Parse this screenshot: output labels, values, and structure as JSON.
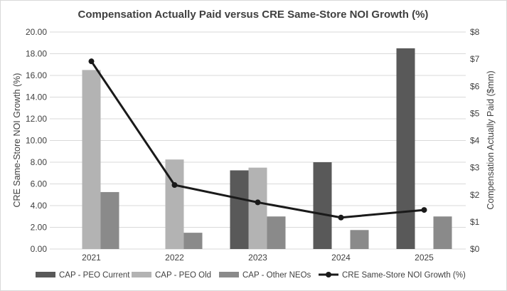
{
  "chart_data": {
    "type": "bar",
    "title": "Compensation Actually Paid versus CRE Same-Store NOI Growth (%)",
    "categories": [
      "2021",
      "2022",
      "2023",
      "2024",
      "2025"
    ],
    "y_left": {
      "label": "CRE Same-Store NOI Growth (%)",
      "range": [
        0,
        20
      ],
      "ticks": [
        "0.00",
        "2.00",
        "4.00",
        "6.00",
        "8.00",
        "10.00",
        "12.00",
        "14.00",
        "16.00",
        "18.00",
        "20.00"
      ]
    },
    "y_right": {
      "label": "Compensation Actually Paid ($mm)",
      "range": [
        0,
        8
      ],
      "ticks": [
        "$0",
        "$1",
        "$2",
        "$3",
        "$4",
        "$5",
        "$6",
        "$7",
        "$8"
      ]
    },
    "series": [
      {
        "name": "CAP - PEO Current",
        "kind": "bar",
        "axis": "right",
        "color": "#595959",
        "values": [
          null,
          null,
          2.9,
          3.2,
          7.4
        ]
      },
      {
        "name": "CAP - PEO Old",
        "kind": "bar",
        "axis": "right",
        "color": "#b3b3b3",
        "values": [
          6.6,
          3.3,
          3.0,
          null,
          null
        ]
      },
      {
        "name": "CAP - Other NEOs",
        "kind": "bar",
        "axis": "right",
        "color": "#8a8a8a",
        "values": [
          2.1,
          0.6,
          1.2,
          0.7,
          1.2
        ]
      },
      {
        "name": "CRE Same-Store NOI Growth (%)",
        "kind": "line",
        "axis": "left",
        "color": "#1a1a1a",
        "values": [
          17.3,
          5.9,
          4.3,
          2.9,
          3.6
        ]
      }
    ],
    "grid": true,
    "legend_position": "bottom"
  }
}
